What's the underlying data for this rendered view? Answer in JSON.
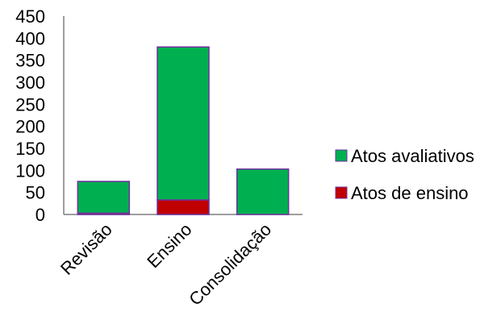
{
  "chart_data": {
    "type": "bar",
    "stacked": true,
    "categories": [
      "Revisão",
      "Ensino",
      "Consolidação"
    ],
    "series": [
      {
        "name": "Atos de ensino",
        "values": [
          3,
          33,
          0
        ],
        "color": "#c00000"
      },
      {
        "name": "Atos avaliativos",
        "values": [
          72,
          347,
          103
        ],
        "color": "#00b050"
      }
    ],
    "yticks": [
      "0",
      "50",
      "100",
      "150",
      "200",
      "250",
      "300",
      "350",
      "400",
      "450"
    ],
    "ylim": [
      0,
      450
    ],
    "grid": false,
    "legend": {
      "placement": "right",
      "order": [
        "Atos avaliativos",
        "Atos de ensino"
      ]
    },
    "bar_border_color": "#7030a0",
    "axis_color": "#7f7f7f"
  }
}
